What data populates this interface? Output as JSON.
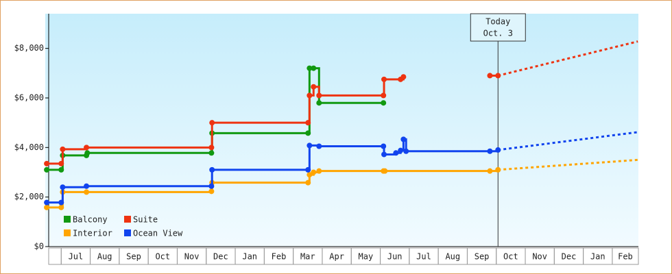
{
  "chart_data": {
    "type": "step-line",
    "categories": [
      "Jul",
      "Aug",
      "Sep",
      "Oct",
      "Nov",
      "Dec",
      "Jan",
      "Feb",
      "Mar",
      "Apr",
      "May",
      "Jun",
      "Jul",
      "Aug",
      "Sep",
      "Oct",
      "Nov",
      "Dec",
      "Jan",
      "Feb"
    ],
    "xlim": [
      -0.55,
      19.9
    ],
    "ylim": [
      0,
      9400
    ],
    "yticks": [
      {
        "value": 0,
        "label": "$0"
      },
      {
        "value": 2000,
        "label": "$2,000"
      },
      {
        "value": 4000,
        "label": "$4,000"
      },
      {
        "value": 6000,
        "label": "$6,000"
      },
      {
        "value": 8000,
        "label": "$8,000"
      }
    ],
    "legend": "lower left",
    "annotation": {
      "x": 15.06,
      "lines": [
        "Today",
        "Oct. 3"
      ]
    },
    "series": [
      {
        "name": "Balcony",
        "color": "#119911",
        "x": [
          -0.5,
          0,
          0.05,
          0.87,
          0.9,
          5.18,
          5.2,
          8.51,
          8.56,
          8.7,
          8.89,
          11.11
        ],
        "values": [
          3100,
          3100,
          3680,
          3680,
          3780,
          3780,
          4580,
          4580,
          7200,
          7200,
          5800,
          5800
        ]
      },
      {
        "name": "Suite",
        "color": "#ee3311",
        "x": [
          -0.5,
          0,
          0.05,
          0.87,
          5.18,
          5.2,
          8.51,
          8.56,
          8.7,
          8.89,
          11.11,
          11.13,
          11.7,
          11.8,
          12.5,
          14.78,
          15.06
        ],
        "values": [
          3350,
          3350,
          3930,
          4000,
          4000,
          5000,
          5000,
          6100,
          6450,
          6100,
          6100,
          6750,
          6750,
          6850,
          null,
          6900,
          6900
        ],
        "projection": {
          "x": [
            15.06,
            19.88
          ],
          "values": [
            6900,
            8280
          ]
        }
      },
      {
        "name": "Interior",
        "color": "#ffa500",
        "x": [
          -0.5,
          0,
          0.05,
          0.87,
          5.18,
          5.2,
          8.51,
          8.56,
          8.7,
          8.89,
          11.11,
          11.16,
          14.78,
          15.06
        ],
        "values": [
          1580,
          1580,
          2200,
          2200,
          2230,
          2580,
          2580,
          2900,
          3000,
          3050,
          3050,
          3050,
          3050,
          3100
        ],
        "projection": {
          "x": [
            15.06,
            19.88
          ],
          "values": [
            3100,
            3500
          ]
        }
      },
      {
        "name": "Ocean View",
        "color": "#1144ee",
        "x": [
          -0.5,
          0,
          0.05,
          0.87,
          5.18,
          5.2,
          8.51,
          8.56,
          8.89,
          11.11,
          11.13,
          11.54,
          11.7,
          11.8,
          11.89,
          14.78,
          15.06
        ],
        "values": [
          1780,
          1780,
          2400,
          2440,
          2440,
          3100,
          3100,
          4080,
          4050,
          4050,
          3720,
          3780,
          3880,
          4330,
          3850,
          3850,
          3900
        ],
        "projection": {
          "x": [
            15.06,
            19.88
          ],
          "values": [
            3900,
            4620
          ]
        }
      }
    ]
  }
}
